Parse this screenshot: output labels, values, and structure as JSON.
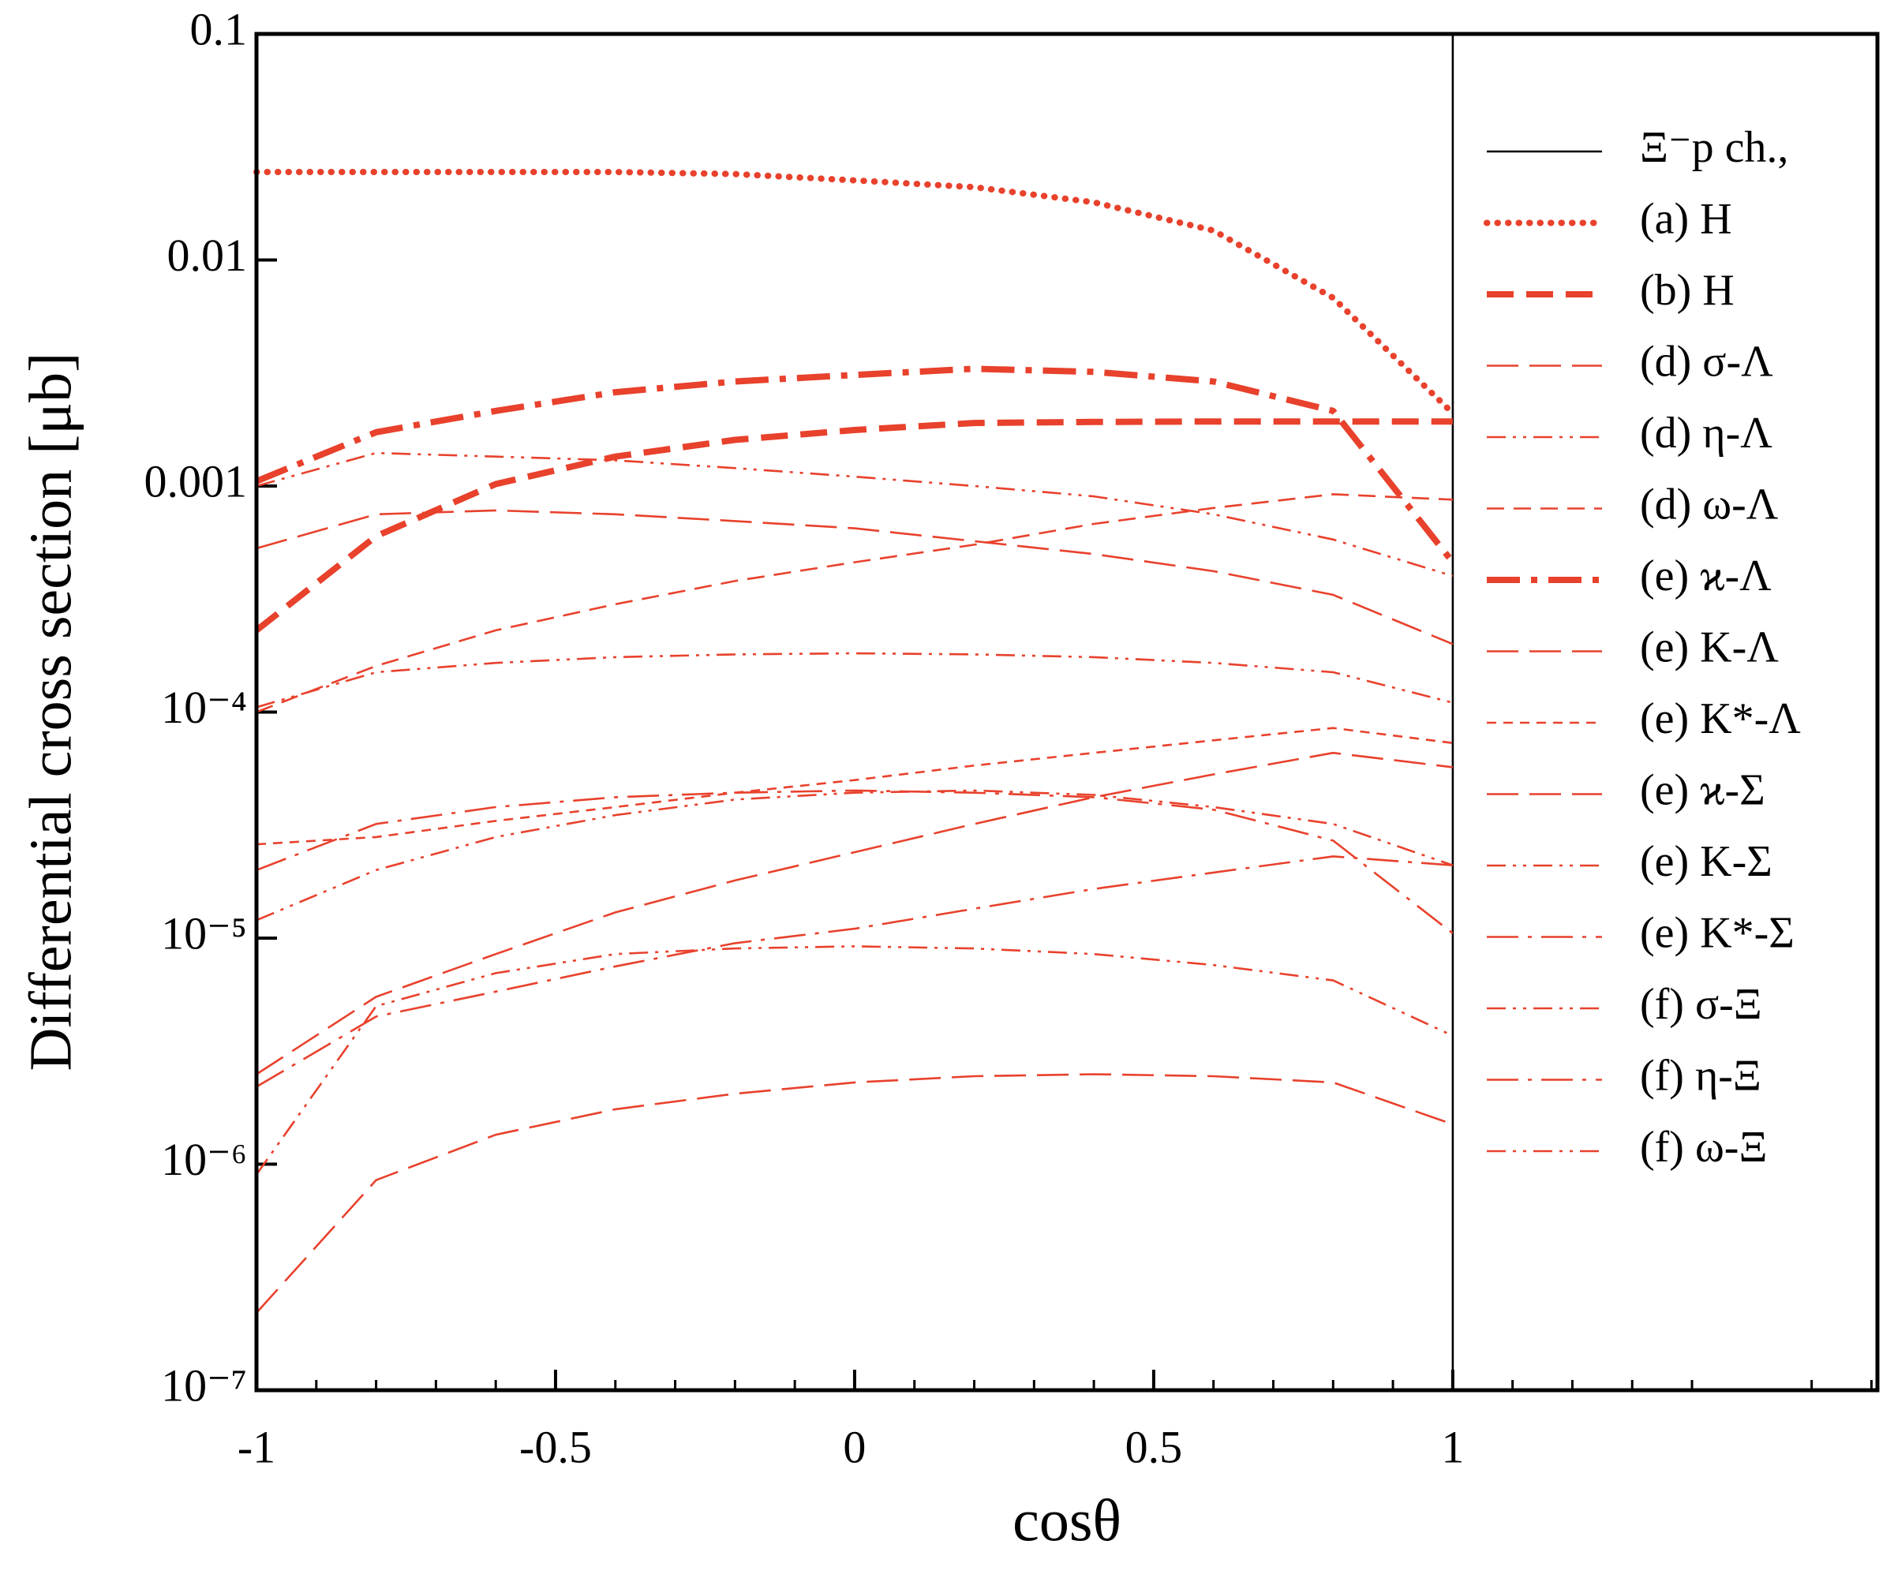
{
  "chart_data": {
    "type": "line",
    "xlabel": "cosθ",
    "ylabel": "Differential cross section [μb]",
    "log_y": true,
    "xlim": [
      -1,
      1.71
    ],
    "ylim": [
      1e-07,
      0.1
    ],
    "xticks": [
      -1,
      -0.5,
      0,
      0.5,
      1
    ],
    "yticks": [
      {
        "value": 1e-07,
        "label": "10⁻⁷"
      },
      {
        "value": 1e-06,
        "label": "10⁻⁶"
      },
      {
        "value": 1e-05,
        "label": "10⁻⁵"
      },
      {
        "value": 0.0001,
        "label": "10⁻⁴"
      },
      0.001,
      0.01,
      0.1
    ],
    "x": [
      -1,
      -0.8,
      -0.6,
      -0.4,
      -0.2,
      0,
      0.2,
      0.4,
      0.6,
      0.8,
      1
    ],
    "series": [
      {
        "name": "Ξ⁻p ch.,",
        "color": "#000000",
        "linestyle": "solid",
        "weight": "thin",
        "x": [
          1,
          1
        ],
        "values": [
          1e-07,
          0.1
        ]
      },
      {
        "name": "(a) H",
        "color": "#e8412c",
        "linestyle": "dotted",
        "weight": "bold",
        "values": [
          0.0245,
          0.0245,
          0.0245,
          0.0245,
          0.024,
          0.0225,
          0.021,
          0.018,
          0.0135,
          0.0068,
          0.0021
        ]
      },
      {
        "name": "(b) H",
        "color": "#e8412c",
        "linestyle": "dashed",
        "weight": "bold",
        "values": [
          0.00023,
          0.0006,
          0.00102,
          0.00135,
          0.0016,
          0.00177,
          0.0019,
          0.00192,
          0.00193,
          0.00193,
          0.00193
        ]
      },
      {
        "name": "(d) σ-Λ",
        "color": "#e8412c",
        "linestyle": "longdash",
        "weight": "thin",
        "values": [
          0.00053,
          0.00075,
          0.00078,
          0.00075,
          0.0007,
          0.00065,
          0.00057,
          0.0005,
          0.00042,
          0.00033,
          0.0002
        ]
      },
      {
        "name": "(d) η-Λ",
        "color": "#e8412c",
        "linestyle": "dashdotdot",
        "weight": "thin",
        "values": [
          0.001,
          0.0014,
          0.00135,
          0.0013,
          0.0012,
          0.0011,
          0.001,
          0.0009,
          0.00075,
          0.00058,
          0.0004
        ]
      },
      {
        "name": "(d) ω-Λ",
        "color": "#e8412c",
        "linestyle": "dashed",
        "weight": "thin",
        "values": [
          0.0001,
          0.00016,
          0.00023,
          0.0003,
          0.00038,
          0.00046,
          0.00055,
          0.00068,
          0.0008,
          0.00092,
          0.00087
        ]
      },
      {
        "name": "(e) ϰ-Λ",
        "color": "#e8412c",
        "linestyle": "dashdot",
        "weight": "bold",
        "values": [
          0.00105,
          0.00173,
          0.00215,
          0.0026,
          0.0029,
          0.0031,
          0.0033,
          0.0032,
          0.0029,
          0.00215,
          0.00046
        ]
      },
      {
        "name": "(e) K-Λ",
        "color": "#e8412c",
        "linestyle": "longdash",
        "weight": "thin",
        "values": [
          2.2e-07,
          8.5e-07,
          1.35e-06,
          1.75e-06,
          2.05e-06,
          2.3e-06,
          2.45e-06,
          2.5e-06,
          2.45e-06,
          2.3e-06,
          1.5e-06
        ]
      },
      {
        "name": "(e) K*-Λ",
        "color": "#e8412c",
        "linestyle": "shortdash",
        "weight": "thin",
        "values": [
          2.6e-05,
          2.8e-05,
          3.3e-05,
          3.8e-05,
          4.4e-05,
          5e-05,
          5.8e-05,
          6.6e-05,
          7.5e-05,
          8.5e-05,
          7.3e-05
        ]
      },
      {
        "name": "(e) ϰ-Σ",
        "color": "#e8412c",
        "linestyle": "longdash",
        "weight": "thin",
        "values": [
          2.5e-06,
          5.5e-06,
          8.5e-06,
          1.3e-05,
          1.8e-05,
          2.4e-05,
          3.2e-05,
          4.2e-05,
          5.3e-05,
          6.6e-05,
          5.7e-05
        ]
      },
      {
        "name": "(e) K-Σ",
        "color": "#e8412c",
        "linestyle": "dashdotdot",
        "weight": "thin",
        "values": [
          1.2e-05,
          2e-05,
          2.8e-05,
          3.5e-05,
          4.1e-05,
          4.4e-05,
          4.5e-05,
          4.3e-05,
          3.8e-05,
          3.2e-05,
          2.1e-05
        ]
      },
      {
        "name": "(e) K*-Σ",
        "color": "#e8412c",
        "linestyle": "longdashdot",
        "weight": "thin",
        "values": [
          2.2e-06,
          4.5e-06,
          5.8e-06,
          7.5e-06,
          9.5e-06,
          1.1e-05,
          1.35e-05,
          1.65e-05,
          1.95e-05,
          2.3e-05,
          2.1e-05
        ]
      },
      {
        "name": "(f) σ-Ξ",
        "color": "#e8412c",
        "linestyle": "dashdotdot",
        "weight": "thin",
        "values": [
          9e-07,
          5e-06,
          7e-06,
          8.5e-06,
          9e-06,
          9.2e-06,
          9e-06,
          8.5e-06,
          7.6e-06,
          6.5e-06,
          3.7e-06
        ]
      },
      {
        "name": "(f) η-Ξ",
        "color": "#e8412c",
        "linestyle": "longdashdot",
        "weight": "thin",
        "values": [
          2e-05,
          3.2e-05,
          3.8e-05,
          4.2e-05,
          4.4e-05,
          4.5e-05,
          4.4e-05,
          4.2e-05,
          3.7e-05,
          2.7e-05,
          1.05e-05
        ]
      },
      {
        "name": "(f) ω-Ξ",
        "color": "#e8412c",
        "linestyle": "dashdotdot",
        "weight": "thin",
        "values": [
          0.000105,
          0.00015,
          0.000165,
          0.000175,
          0.00018,
          0.000182,
          0.00018,
          0.000175,
          0.000165,
          0.00015,
          0.00011
        ]
      }
    ]
  }
}
